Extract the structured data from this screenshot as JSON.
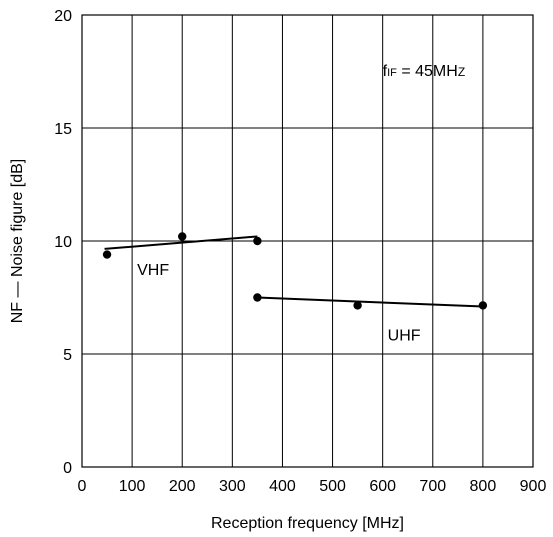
{
  "chart_data": {
    "type": "scatter",
    "xlabel": "Reception frequency [MHz]",
    "ylabel": "NF — Noise figure [dB]",
    "xlim": [
      0,
      900
    ],
    "ylim": [
      0,
      20
    ],
    "x_ticks": [
      0,
      100,
      200,
      300,
      400,
      500,
      600,
      700,
      800,
      900
    ],
    "y_ticks": [
      0,
      5,
      10,
      15,
      20
    ],
    "x_tick_labels": [
      "0",
      "100",
      "200",
      "300",
      "400",
      "500",
      "600",
      "700",
      "800",
      "900"
    ],
    "y_tick_labels": [
      "0",
      "5",
      "10",
      "15",
      "20"
    ],
    "grid": true,
    "series": [
      {
        "name": "VHF",
        "points": [
          {
            "x": 50,
            "y": 9.4
          },
          {
            "x": 200,
            "y": 10.2
          },
          {
            "x": 350,
            "y": 10.0
          }
        ],
        "trend": [
          {
            "x": 45,
            "y": 9.65
          },
          {
            "x": 350,
            "y": 10.2
          }
        ]
      },
      {
        "name": "UHF",
        "points": [
          {
            "x": 350,
            "y": 7.5
          },
          {
            "x": 550,
            "y": 7.15
          },
          {
            "x": 800,
            "y": 7.15
          }
        ],
        "trend": [
          {
            "x": 350,
            "y": 7.5
          },
          {
            "x": 800,
            "y": 7.1
          }
        ]
      }
    ],
    "annotations": {
      "condition": {
        "prefix": "f",
        "subscript": "IF",
        "suffix": " = 45MH",
        "small_suffix": "Z",
        "x": 600,
        "y": 17.3
      },
      "vhf_label": {
        "text": "VHF",
        "x": 110,
        "y": 8.5
      },
      "uhf_label": {
        "text": "UHF",
        "x": 610,
        "y": 5.6
      }
    }
  }
}
